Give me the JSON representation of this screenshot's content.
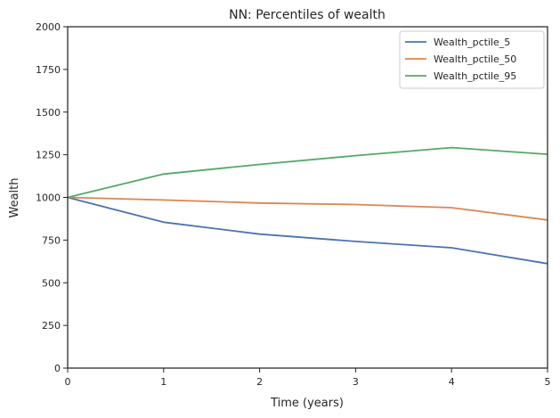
{
  "chart_data": {
    "type": "line",
    "title": "NN: Percentiles of wealth",
    "xlabel": "Time (years)",
    "ylabel": "Wealth",
    "x": [
      0,
      1,
      2,
      3,
      4,
      5
    ],
    "xlim": [
      0,
      5
    ],
    "ylim": [
      0,
      2000
    ],
    "xticks": [
      "0",
      "1",
      "2",
      "3",
      "4",
      "5"
    ],
    "yticks": [
      "0",
      "250",
      "500",
      "750",
      "1000",
      "1250",
      "1500",
      "1750",
      "2000"
    ],
    "grid": false,
    "legend_position": "top-right",
    "series": [
      {
        "name": "Wealth_pctile_5",
        "color": "#4c72b0",
        "values": [
          1000,
          855,
          785,
          742,
          705,
          612
        ]
      },
      {
        "name": "Wealth_pctile_50",
        "color": "#dd8452",
        "values": [
          1000,
          985,
          967,
          958,
          940,
          868
        ]
      },
      {
        "name": "Wealth_pctile_95",
        "color": "#55a868",
        "values": [
          1000,
          1137,
          1193,
          1245,
          1292,
          1253
        ]
      }
    ]
  }
}
